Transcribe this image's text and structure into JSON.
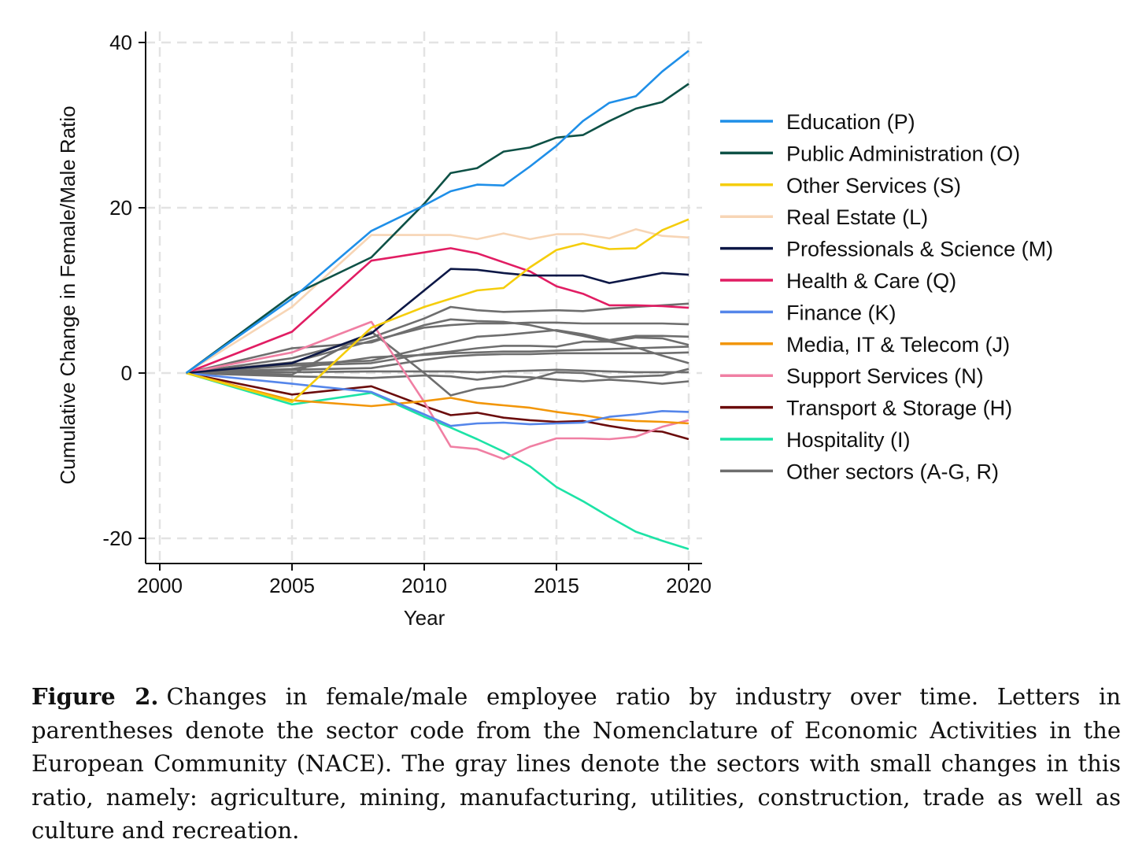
{
  "chart_data": {
    "type": "line",
    "title": "",
    "xlabel": "Year",
    "ylabel": "Cumulative Change in Female/Male Ratio",
    "xlim": [
      2000,
      2020
    ],
    "ylim": [
      -22,
      40
    ],
    "xticks": [
      2000,
      2005,
      2010,
      2015,
      2020
    ],
    "yticks": [
      -20,
      0,
      20,
      40
    ],
    "grid": true,
    "legend_position": "right",
    "x": [
      2001,
      2005,
      2008,
      2010,
      2011,
      2012,
      2013,
      2014,
      2015,
      2016,
      2017,
      2018,
      2019,
      2020
    ],
    "series": [
      {
        "name": "Education (P)",
        "color": "#1f8fe8",
        "values": [
          0,
          9,
          17.2,
          20.3,
          22,
          22.8,
          22.7,
          25,
          27.5,
          30.5,
          32.7,
          33.5,
          36.5,
          39
        ]
      },
      {
        "name": "Public Administration (O)",
        "color": "#0e5146",
        "values": [
          0,
          9.4,
          14,
          20.5,
          24.2,
          24.8,
          26.8,
          27.3,
          28.5,
          28.8,
          30.5,
          32,
          32.8,
          35
        ]
      },
      {
        "name": "Other Services (S)",
        "color": "#f5cd0c",
        "values": [
          0,
          -3.5,
          5.5,
          8,
          9,
          10,
          10.3,
          12.8,
          14.9,
          15.7,
          15,
          15.1,
          17.3,
          18.6
        ]
      },
      {
        "name": "Real Estate (L)",
        "color": "#f7d5b5",
        "values": [
          0,
          8,
          16.7,
          16.7,
          16.7,
          16.2,
          16.9,
          16.2,
          16.8,
          16.8,
          16.3,
          17.4,
          16.6,
          16.4
        ]
      },
      {
        "name": "Professionals & Science (M)",
        "color": "#0c1746",
        "values": [
          0,
          1.2,
          4.8,
          10,
          12.6,
          12.5,
          12.1,
          11.8,
          11.8,
          11.8,
          10.9,
          11.5,
          12.1,
          11.9
        ]
      },
      {
        "name": "Health & Care (Q)",
        "color": "#e11d63",
        "values": [
          0,
          5,
          13.6,
          14.6,
          15.1,
          14.5,
          13.4,
          12.3,
          10.5,
          9.6,
          8.2,
          8.2,
          8.1,
          7.9
        ]
      },
      {
        "name": "Finance (K)",
        "color": "#5586ea",
        "values": [
          0,
          -1.3,
          -2.3,
          -5,
          -6.4,
          -6.1,
          -6,
          -6.2,
          -6.1,
          -6,
          -5.3,
          -5,
          -4.6,
          -4.7
        ]
      },
      {
        "name": "Media, IT & Telecom (J)",
        "color": "#f29609",
        "values": [
          0,
          -3.3,
          -4,
          -3.4,
          -3,
          -3.6,
          -3.9,
          -4.2,
          -4.7,
          -5.1,
          -5.6,
          -5.8,
          -5.9,
          -6.1
        ]
      },
      {
        "name": "Support Services (N)",
        "color": "#f07fa3",
        "values": [
          0,
          2.5,
          6.2,
          -3.5,
          -8.9,
          -9.2,
          -10.4,
          -8.9,
          -7.9,
          -7.9,
          -8,
          -7.7,
          -6.5,
          -5.7
        ]
      },
      {
        "name": "Transport & Storage (H)",
        "color": "#6b0c0c",
        "values": [
          0,
          -2.6,
          -1.6,
          -4,
          -5.1,
          -4.8,
          -5.4,
          -5.7,
          -5.9,
          -5.8,
          -6.4,
          -6.9,
          -7.1,
          -8
        ]
      },
      {
        "name": "Hospitality (I)",
        "color": "#1de3a6",
        "values": [
          0,
          -3.8,
          -2.4,
          -5.3,
          -6.6,
          -8,
          -9.5,
          -11.3,
          -13.8,
          -15.5,
          -17.4,
          -19.2,
          -20.3,
          -21.3
        ]
      },
      {
        "name": "Other sectors (A-G, R)",
        "color": "#6e6e6e",
        "values": [
          0,
          3,
          3.7,
          5.8,
          6.5,
          6.3,
          6.2,
          5.8,
          5.1,
          4.5,
          3.8,
          3.1,
          2.1,
          1.2
        ]
      },
      {
        "name": "",
        "color": "#6e6e6e",
        "values": [
          0,
          1.8,
          4.3,
          6.6,
          8,
          7.6,
          7.4,
          7.5,
          7.6,
          7.5,
          7.8,
          8,
          8.2,
          8.4
        ]
      },
      {
        "name": "",
        "color": "#6e6e6e",
        "values": [
          0,
          1.3,
          3.9,
          5.5,
          5.8,
          6,
          6,
          6.1,
          6.1,
          6,
          6,
          6,
          6,
          5.9
        ]
      },
      {
        "name": "",
        "color": "#6e6e6e",
        "values": [
          0,
          1.1,
          1.5,
          3,
          3.7,
          4.4,
          4.6,
          4.9,
          5.2,
          4.7,
          4,
          4.5,
          4.5,
          4.4
        ]
      },
      {
        "name": "",
        "color": "#6e6e6e",
        "values": [
          0,
          0.9,
          1.2,
          2.3,
          2.6,
          3,
          3.3,
          3.3,
          3.2,
          3.8,
          3.8,
          4.3,
          4.2,
          3.4
        ]
      },
      {
        "name": "",
        "color": "#6e6e6e",
        "values": [
          0,
          0.5,
          1.9,
          2.2,
          2.4,
          2.5,
          2.6,
          2.6,
          2.7,
          2.8,
          2.9,
          3,
          3.1,
          3.2
        ]
      },
      {
        "name": "",
        "color": "#6e6e6e",
        "values": [
          0,
          0.4,
          0.6,
          1.6,
          2,
          2.2,
          2.3,
          2.3,
          2.4,
          2.4,
          2.4,
          2.4,
          2.4,
          2.5
        ]
      },
      {
        "name": "",
        "color": "#6e6e6e",
        "values": [
          0,
          0.1,
          0.2,
          0.2,
          0.2,
          0.1,
          0.2,
          0.3,
          0.4,
          0.3,
          0.2,
          0.1,
          0.1,
          0.1
        ]
      },
      {
        "name": "",
        "color": "#6e6e6e",
        "values": [
          0,
          -0.2,
          5,
          0,
          -2.7,
          -1.9,
          -1.6,
          -0.8,
          0.1,
          0,
          -0.5,
          -0.4,
          -0.3,
          0.5
        ]
      },
      {
        "name": "",
        "color": "#6e6e6e",
        "values": [
          0,
          -0.4,
          -0.6,
          -0.3,
          -0.4,
          -0.8,
          -0.4,
          -0.5,
          -0.8,
          -1,
          -0.8,
          -1,
          -1.3,
          -1
        ]
      }
    ]
  },
  "caption": {
    "label": "Figure 2.",
    "text": "Changes in female/male employee ratio by industry over time.  Letters in parentheses denote the sector code from the Nomenclature of Economic Activities in the European Community (NACE). The gray lines denote the sectors with small changes in this ratio, namely:  agriculture, mining, manufacturing, utilities, construction, trade as well as culture and recreation."
  }
}
